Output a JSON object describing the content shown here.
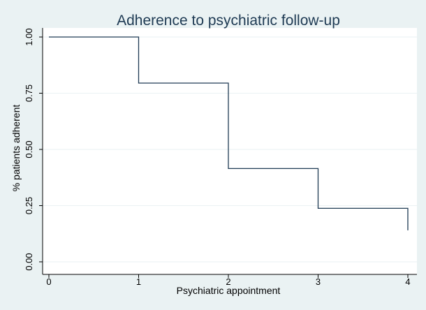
{
  "chart_data": {
    "type": "line",
    "step": true,
    "title": "Adherence to psychiatric follow-up",
    "xlabel": "Psychiatric appointment",
    "ylabel": "% patients adherent",
    "xlim": [
      0,
      4
    ],
    "ylim": [
      0,
      1
    ],
    "xticks": [
      "0",
      "1",
      "2",
      "3",
      "4"
    ],
    "yticks": [
      "0.00",
      "0.25",
      "0.50",
      "0.75",
      "1.00"
    ],
    "grid": true,
    "series": [
      {
        "x": [
          0,
          1,
          2,
          3,
          4
        ],
        "y": [
          1.0,
          0.795,
          0.415,
          0.238,
          0.14
        ],
        "color": "#1e3a53"
      }
    ]
  }
}
